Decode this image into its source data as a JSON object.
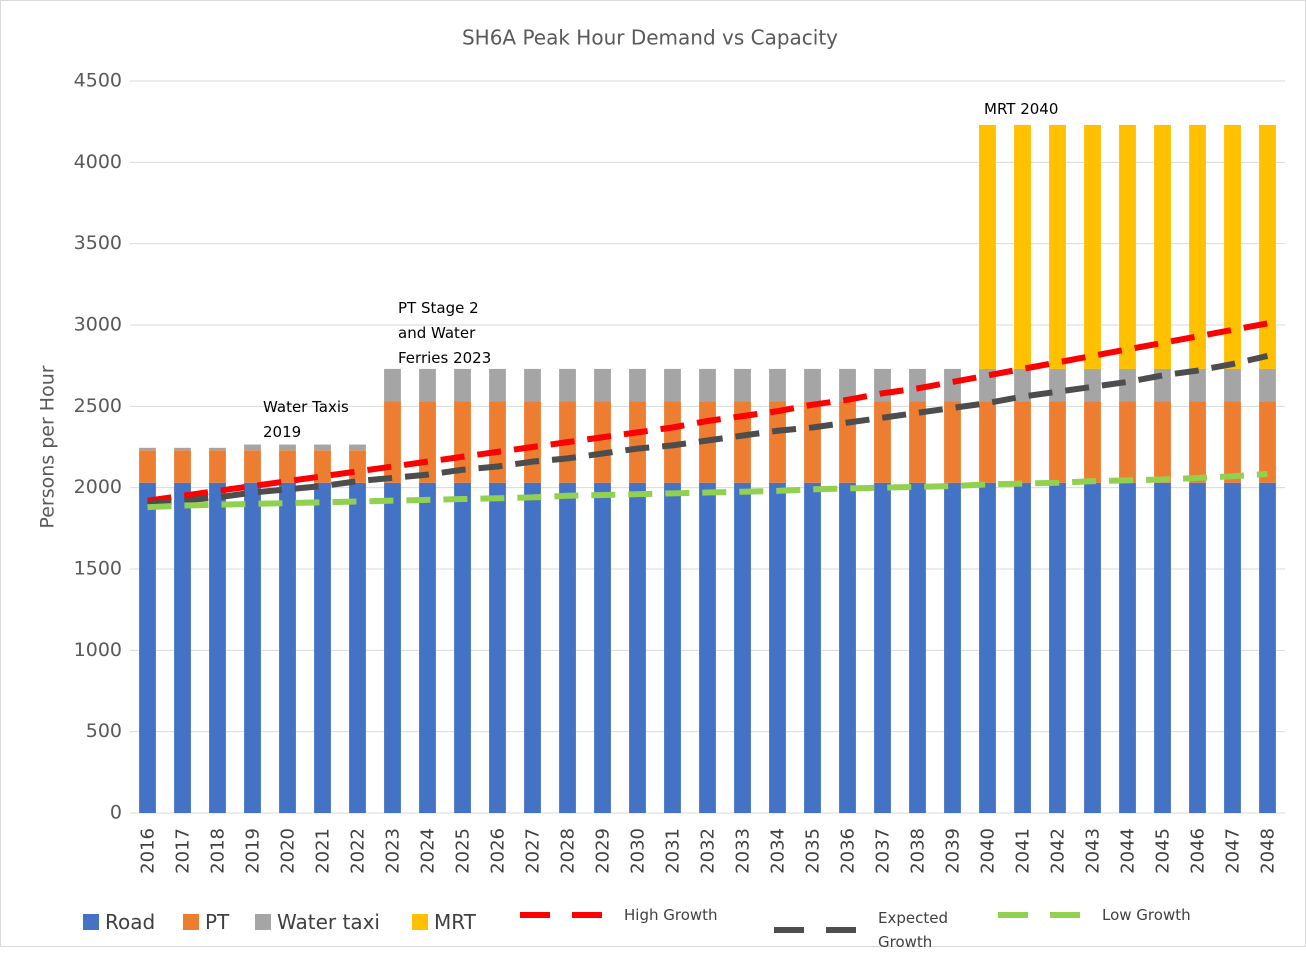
{
  "chart_data": {
    "type": "bar",
    "stacked": true,
    "title": "SH6A Peak Hour Demand vs Capacity",
    "y_label": "Persons per Hour",
    "categories": [
      "2016",
      "2017",
      "2018",
      "2019",
      "2020",
      "2021",
      "2022",
      "2023",
      "2024",
      "2025",
      "2026",
      "2027",
      "2028",
      "2029",
      "2030",
      "2031",
      "2032",
      "2033",
      "2034",
      "2035",
      "2036",
      "2037",
      "2038",
      "2039",
      "2040",
      "2041",
      "2042",
      "2043",
      "2044",
      "2045",
      "2046",
      "2047",
      "2048"
    ],
    "ylim": [
      0,
      4500
    ],
    "yticks": [
      0,
      500,
      1000,
      1500,
      2000,
      2500,
      3000,
      3500,
      4000,
      4500
    ],
    "grid": true,
    "legend": "bottom",
    "series": [
      {
        "name": "Road",
        "type": "bar",
        "color": "#4472c4",
        "values": [
          2030,
          2030,
          2030,
          2030,
          2030,
          2030,
          2030,
          2030,
          2030,
          2030,
          2030,
          2030,
          2030,
          2030,
          2030,
          2030,
          2030,
          2030,
          2030,
          2030,
          2030,
          2030,
          2030,
          2030,
          2030,
          2030,
          2030,
          2030,
          2030,
          2030,
          2030,
          2030,
          2030
        ]
      },
      {
        "name": "PT",
        "type": "bar",
        "color": "#ed7d31",
        "values": [
          200,
          200,
          200,
          200,
          200,
          200,
          200,
          500,
          500,
          500,
          500,
          500,
          500,
          500,
          500,
          500,
          500,
          500,
          500,
          500,
          500,
          500,
          500,
          500,
          500,
          500,
          500,
          500,
          500,
          500,
          500,
          500,
          500
        ]
      },
      {
        "name": "Water taxi",
        "type": "bar",
        "color": "#a5a5a5",
        "values": [
          15,
          15,
          15,
          35,
          35,
          35,
          35,
          200,
          200,
          200,
          200,
          200,
          200,
          200,
          200,
          200,
          200,
          200,
          200,
          200,
          200,
          200,
          200,
          200,
          200,
          200,
          200,
          200,
          200,
          200,
          200,
          200,
          200
        ]
      },
      {
        "name": "MRT",
        "type": "bar",
        "color": "#ffc000",
        "values": [
          0,
          0,
          0,
          0,
          0,
          0,
          0,
          0,
          0,
          0,
          0,
          0,
          0,
          0,
          0,
          0,
          0,
          0,
          0,
          0,
          0,
          0,
          0,
          0,
          1500,
          1500,
          1500,
          1500,
          1500,
          1500,
          1500,
          1500,
          1500
        ]
      },
      {
        "name": "High Growth",
        "type": "line",
        "dashed": true,
        "color": "#ff0000",
        "values": [
          1920,
          1950,
          1980,
          2010,
          2040,
          2070,
          2100,
          2130,
          2160,
          2190,
          2220,
          2250,
          2280,
          2310,
          2340,
          2370,
          2410,
          2440,
          2470,
          2510,
          2540,
          2580,
          2610,
          2650,
          2690,
          2730,
          2770,
          2810,
          2850,
          2890,
          2930,
          2970,
          3010
        ]
      },
      {
        "name": "Expected Growth",
        "type": "line",
        "dashed": true,
        "color": "#4d4d4d",
        "values": [
          1900,
          1920,
          1940,
          1970,
          1990,
          2010,
          2040,
          2060,
          2080,
          2110,
          2130,
          2160,
          2180,
          2210,
          2240,
          2260,
          2290,
          2320,
          2350,
          2370,
          2400,
          2430,
          2460,
          2490,
          2520,
          2560,
          2590,
          2620,
          2650,
          2690,
          2720,
          2760,
          2810
        ]
      },
      {
        "name": "Low Growth",
        "type": "line",
        "dashed": true,
        "color": "#92d050",
        "values": [
          1880,
          1890,
          1895,
          1900,
          1905,
          1910,
          1915,
          1920,
          1925,
          1930,
          1935,
          1940,
          1950,
          1955,
          1960,
          1965,
          1970,
          1975,
          1980,
          1990,
          1995,
          2000,
          2005,
          2010,
          2020,
          2025,
          2030,
          2040,
          2045,
          2050,
          2060,
          2070,
          2085
        ]
      }
    ],
    "annotations": [
      {
        "lines": [
          "Water Taxis",
          "2019"
        ]
      },
      {
        "lines": [
          "PT Stage 2",
          "and Water",
          "Ferries 2023"
        ]
      },
      {
        "lines": [
          "MRT 2040"
        ]
      }
    ]
  }
}
